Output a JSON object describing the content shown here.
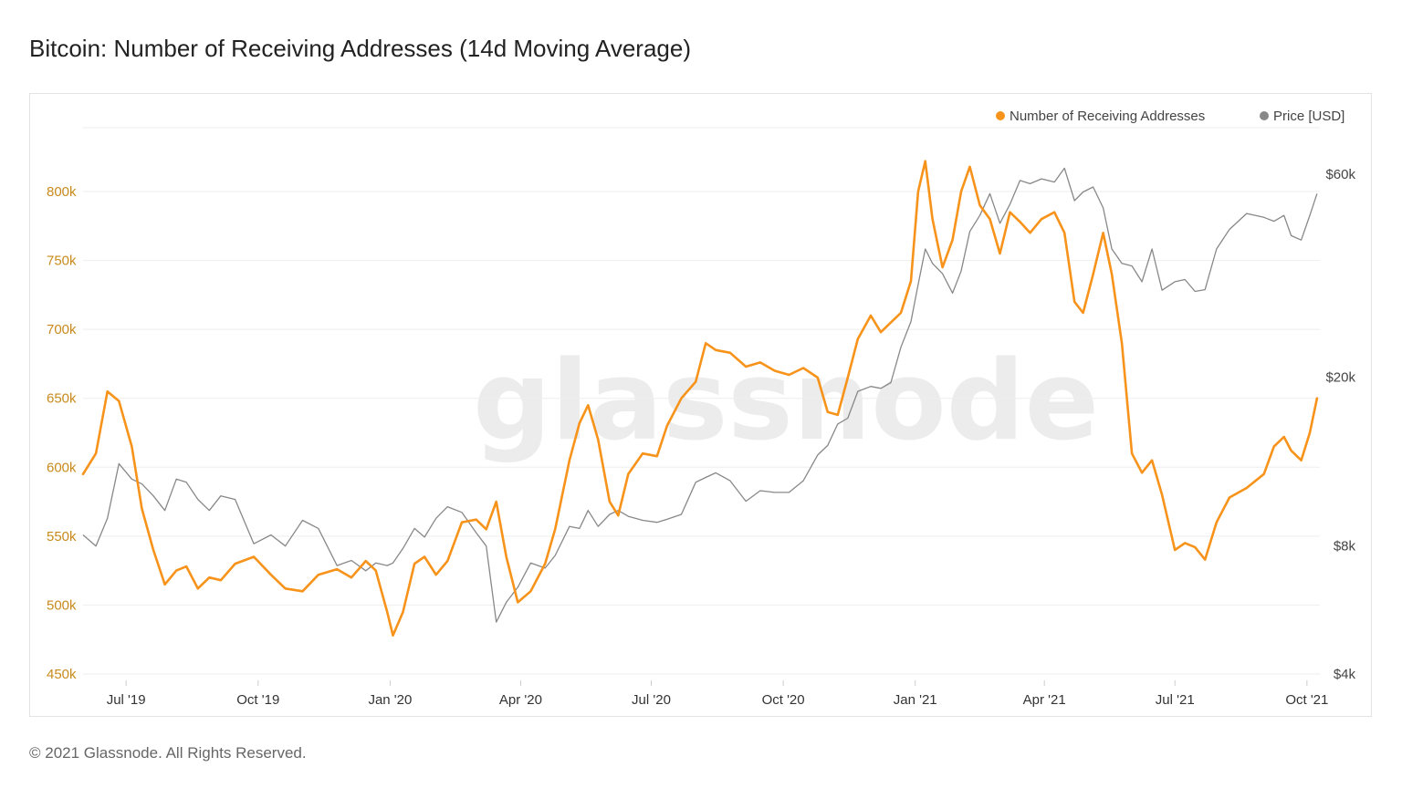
{
  "page": {
    "title": "Bitcoin: Number of Receiving Addresses (14d Moving Average)",
    "footer": "© 2021 Glassnode. All Rights Reserved.",
    "watermark": "glassnode"
  },
  "chart_data": {
    "type": "line",
    "title": "Bitcoin: Number of Receiving Addresses (14d Moving Average)",
    "legend_placement": "top-right",
    "grid": true,
    "x_ticks": [
      "Jul '19",
      "Oct '19",
      "Jan '20",
      "Apr '20",
      "Jul '20",
      "Oct '20",
      "Jan '21",
      "Apr '21",
      "Jul '21",
      "Oct '21"
    ],
    "x_range": [
      "2019-06-01",
      "2021-10-10"
    ],
    "y_left": {
      "range": [
        450000,
        800000
      ],
      "ticks": [
        450000,
        500000,
        550000,
        600000,
        650000,
        700000,
        750000,
        800000
      ],
      "tick_labels": [
        "450k",
        "500k",
        "550k",
        "600k",
        "650k",
        "700k",
        "750k",
        "800k"
      ]
    },
    "y_right": {
      "scale": "log",
      "ticks": [
        4000,
        8000,
        20000,
        60000
      ],
      "tick_labels": [
        "$4k",
        "$8k",
        "$20k",
        "$60k"
      ]
    },
    "colors": {
      "addresses": "#f7931a",
      "price": "#888888",
      "left_axis": "#c88a1c"
    },
    "series": [
      {
        "name": "Number of Receiving Addresses",
        "axis": "left",
        "color": "#f7931a",
        "points": [
          [
            "2019-06-01",
            595000
          ],
          [
            "2019-06-10",
            610000
          ],
          [
            "2019-06-18",
            655000
          ],
          [
            "2019-06-26",
            648000
          ],
          [
            "2019-07-05",
            615000
          ],
          [
            "2019-07-12",
            570000
          ],
          [
            "2019-07-20",
            540000
          ],
          [
            "2019-07-28",
            515000
          ],
          [
            "2019-08-05",
            525000
          ],
          [
            "2019-08-12",
            528000
          ],
          [
            "2019-08-20",
            512000
          ],
          [
            "2019-08-28",
            520000
          ],
          [
            "2019-09-05",
            518000
          ],
          [
            "2019-09-15",
            530000
          ],
          [
            "2019-09-28",
            535000
          ],
          [
            "2019-10-10",
            522000
          ],
          [
            "2019-10-20",
            512000
          ],
          [
            "2019-11-01",
            510000
          ],
          [
            "2019-11-12",
            522000
          ],
          [
            "2019-11-25",
            526000
          ],
          [
            "2019-12-05",
            520000
          ],
          [
            "2019-12-15",
            532000
          ],
          [
            "2019-12-22",
            525000
          ],
          [
            "2019-12-30",
            495000
          ],
          [
            "2020-01-03",
            478000
          ],
          [
            "2020-01-10",
            495000
          ],
          [
            "2020-01-18",
            530000
          ],
          [
            "2020-01-25",
            535000
          ],
          [
            "2020-02-02",
            522000
          ],
          [
            "2020-02-10",
            532000
          ],
          [
            "2020-02-20",
            560000
          ],
          [
            "2020-03-01",
            562000
          ],
          [
            "2020-03-08",
            555000
          ],
          [
            "2020-03-15",
            575000
          ],
          [
            "2020-03-22",
            535000
          ],
          [
            "2020-03-30",
            502000
          ],
          [
            "2020-04-08",
            510000
          ],
          [
            "2020-04-18",
            530000
          ],
          [
            "2020-04-25",
            555000
          ],
          [
            "2020-05-05",
            605000
          ],
          [
            "2020-05-12",
            632000
          ],
          [
            "2020-05-18",
            645000
          ],
          [
            "2020-05-25",
            620000
          ],
          [
            "2020-06-02",
            575000
          ],
          [
            "2020-06-08",
            565000
          ],
          [
            "2020-06-15",
            595000
          ],
          [
            "2020-06-25",
            610000
          ],
          [
            "2020-07-05",
            608000
          ],
          [
            "2020-07-12",
            630000
          ],
          [
            "2020-07-22",
            650000
          ],
          [
            "2020-08-01",
            662000
          ],
          [
            "2020-08-08",
            690000
          ],
          [
            "2020-08-15",
            685000
          ],
          [
            "2020-08-25",
            683000
          ],
          [
            "2020-09-05",
            673000
          ],
          [
            "2020-09-15",
            676000
          ],
          [
            "2020-09-25",
            670000
          ],
          [
            "2020-10-05",
            667000
          ],
          [
            "2020-10-15",
            672000
          ],
          [
            "2020-10-25",
            665000
          ],
          [
            "2020-11-01",
            640000
          ],
          [
            "2020-11-08",
            638000
          ],
          [
            "2020-11-15",
            665000
          ],
          [
            "2020-11-22",
            693000
          ],
          [
            "2020-12-01",
            710000
          ],
          [
            "2020-12-08",
            698000
          ],
          [
            "2020-12-15",
            705000
          ],
          [
            "2020-12-22",
            712000
          ],
          [
            "2020-12-29",
            735000
          ],
          [
            "2021-01-03",
            800000
          ],
          [
            "2021-01-08",
            822000
          ],
          [
            "2021-01-13",
            780000
          ],
          [
            "2021-01-20",
            745000
          ],
          [
            "2021-01-27",
            765000
          ],
          [
            "2021-02-02",
            800000
          ],
          [
            "2021-02-08",
            818000
          ],
          [
            "2021-02-15",
            790000
          ],
          [
            "2021-02-22",
            780000
          ],
          [
            "2021-03-01",
            755000
          ],
          [
            "2021-03-08",
            785000
          ],
          [
            "2021-03-15",
            778000
          ],
          [
            "2021-03-22",
            770000
          ],
          [
            "2021-03-30",
            780000
          ],
          [
            "2021-04-08",
            785000
          ],
          [
            "2021-04-15",
            770000
          ],
          [
            "2021-04-22",
            720000
          ],
          [
            "2021-04-28",
            712000
          ],
          [
            "2021-05-05",
            740000
          ],
          [
            "2021-05-12",
            770000
          ],
          [
            "2021-05-18",
            740000
          ],
          [
            "2021-05-25",
            690000
          ],
          [
            "2021-06-01",
            610000
          ],
          [
            "2021-06-08",
            596000
          ],
          [
            "2021-06-15",
            605000
          ],
          [
            "2021-06-22",
            580000
          ],
          [
            "2021-07-01",
            540000
          ],
          [
            "2021-07-08",
            545000
          ],
          [
            "2021-07-15",
            542000
          ],
          [
            "2021-07-22",
            533000
          ],
          [
            "2021-07-30",
            560000
          ],
          [
            "2021-08-08",
            578000
          ],
          [
            "2021-08-20",
            585000
          ],
          [
            "2021-09-01",
            595000
          ],
          [
            "2021-09-08",
            615000
          ],
          [
            "2021-09-15",
            622000
          ],
          [
            "2021-09-20",
            612000
          ],
          [
            "2021-09-27",
            605000
          ],
          [
            "2021-10-03",
            625000
          ],
          [
            "2021-10-08",
            650000
          ]
        ]
      },
      {
        "name": "Price [USD]",
        "axis": "right",
        "color": "#888888",
        "points": [
          [
            "2019-06-01",
            8500
          ],
          [
            "2019-06-10",
            8000
          ],
          [
            "2019-06-18",
            9300
          ],
          [
            "2019-06-26",
            12500
          ],
          [
            "2019-07-05",
            11500
          ],
          [
            "2019-07-12",
            11200
          ],
          [
            "2019-07-20",
            10500
          ],
          [
            "2019-07-28",
            9700
          ],
          [
            "2019-08-05",
            11500
          ],
          [
            "2019-08-12",
            11300
          ],
          [
            "2019-08-20",
            10300
          ],
          [
            "2019-08-28",
            9700
          ],
          [
            "2019-09-05",
            10500
          ],
          [
            "2019-09-15",
            10300
          ],
          [
            "2019-09-28",
            8100
          ],
          [
            "2019-10-10",
            8500
          ],
          [
            "2019-10-20",
            8000
          ],
          [
            "2019-11-01",
            9200
          ],
          [
            "2019-11-12",
            8800
          ],
          [
            "2019-11-25",
            7200
          ],
          [
            "2019-12-05",
            7400
          ],
          [
            "2019-12-15",
            7000
          ],
          [
            "2019-12-22",
            7300
          ],
          [
            "2019-12-30",
            7200
          ],
          [
            "2020-01-03",
            7300
          ],
          [
            "2020-01-10",
            7900
          ],
          [
            "2020-01-18",
            8800
          ],
          [
            "2020-01-25",
            8400
          ],
          [
            "2020-02-02",
            9300
          ],
          [
            "2020-02-10",
            9900
          ],
          [
            "2020-02-20",
            9600
          ],
          [
            "2020-03-01",
            8600
          ],
          [
            "2020-03-08",
            8000
          ],
          [
            "2020-03-15",
            5300
          ],
          [
            "2020-03-22",
            5900
          ],
          [
            "2020-03-30",
            6400
          ],
          [
            "2020-04-08",
            7300
          ],
          [
            "2020-04-18",
            7100
          ],
          [
            "2020-04-25",
            7600
          ],
          [
            "2020-05-05",
            8900
          ],
          [
            "2020-05-12",
            8800
          ],
          [
            "2020-05-18",
            9700
          ],
          [
            "2020-05-25",
            8900
          ],
          [
            "2020-06-02",
            9500
          ],
          [
            "2020-06-08",
            9700
          ],
          [
            "2020-06-15",
            9400
          ],
          [
            "2020-06-25",
            9200
          ],
          [
            "2020-07-05",
            9100
          ],
          [
            "2020-07-12",
            9250
          ],
          [
            "2020-07-22",
            9500
          ],
          [
            "2020-08-01",
            11300
          ],
          [
            "2020-08-08",
            11600
          ],
          [
            "2020-08-15",
            11900
          ],
          [
            "2020-08-25",
            11400
          ],
          [
            "2020-09-05",
            10200
          ],
          [
            "2020-09-15",
            10800
          ],
          [
            "2020-09-25",
            10700
          ],
          [
            "2020-10-05",
            10700
          ],
          [
            "2020-10-15",
            11400
          ],
          [
            "2020-10-25",
            13100
          ],
          [
            "2020-11-01",
            13800
          ],
          [
            "2020-11-08",
            15500
          ],
          [
            "2020-11-15",
            16000
          ],
          [
            "2020-11-22",
            18500
          ],
          [
            "2020-12-01",
            19000
          ],
          [
            "2020-12-08",
            18800
          ],
          [
            "2020-12-15",
            19400
          ],
          [
            "2020-12-22",
            23500
          ],
          [
            "2020-12-29",
            27000
          ],
          [
            "2021-01-03",
            33000
          ],
          [
            "2021-01-08",
            40000
          ],
          [
            "2021-01-13",
            37000
          ],
          [
            "2021-01-20",
            35000
          ],
          [
            "2021-01-27",
            31500
          ],
          [
            "2021-02-02",
            35500
          ],
          [
            "2021-02-08",
            44000
          ],
          [
            "2021-02-15",
            48000
          ],
          [
            "2021-02-22",
            54000
          ],
          [
            "2021-03-01",
            46000
          ],
          [
            "2021-03-08",
            51000
          ],
          [
            "2021-03-15",
            58000
          ],
          [
            "2021-03-22",
            57000
          ],
          [
            "2021-03-30",
            58500
          ],
          [
            "2021-04-08",
            57500
          ],
          [
            "2021-04-15",
            62000
          ],
          [
            "2021-04-22",
            52000
          ],
          [
            "2021-04-28",
            54500
          ],
          [
            "2021-05-05",
            56000
          ],
          [
            "2021-05-12",
            50000
          ],
          [
            "2021-05-18",
            40000
          ],
          [
            "2021-05-25",
            37000
          ],
          [
            "2021-06-01",
            36500
          ],
          [
            "2021-06-08",
            33500
          ],
          [
            "2021-06-15",
            40000
          ],
          [
            "2021-06-22",
            32000
          ],
          [
            "2021-07-01",
            33500
          ],
          [
            "2021-07-08",
            33900
          ],
          [
            "2021-07-15",
            31800
          ],
          [
            "2021-07-22",
            32100
          ],
          [
            "2021-07-30",
            40000
          ],
          [
            "2021-08-08",
            44500
          ],
          [
            "2021-08-20",
            48500
          ],
          [
            "2021-09-01",
            47500
          ],
          [
            "2021-09-08",
            46500
          ],
          [
            "2021-09-15",
            48000
          ],
          [
            "2021-09-20",
            43000
          ],
          [
            "2021-09-27",
            42000
          ],
          [
            "2021-10-03",
            48000
          ],
          [
            "2021-10-08",
            54000
          ]
        ]
      }
    ]
  }
}
